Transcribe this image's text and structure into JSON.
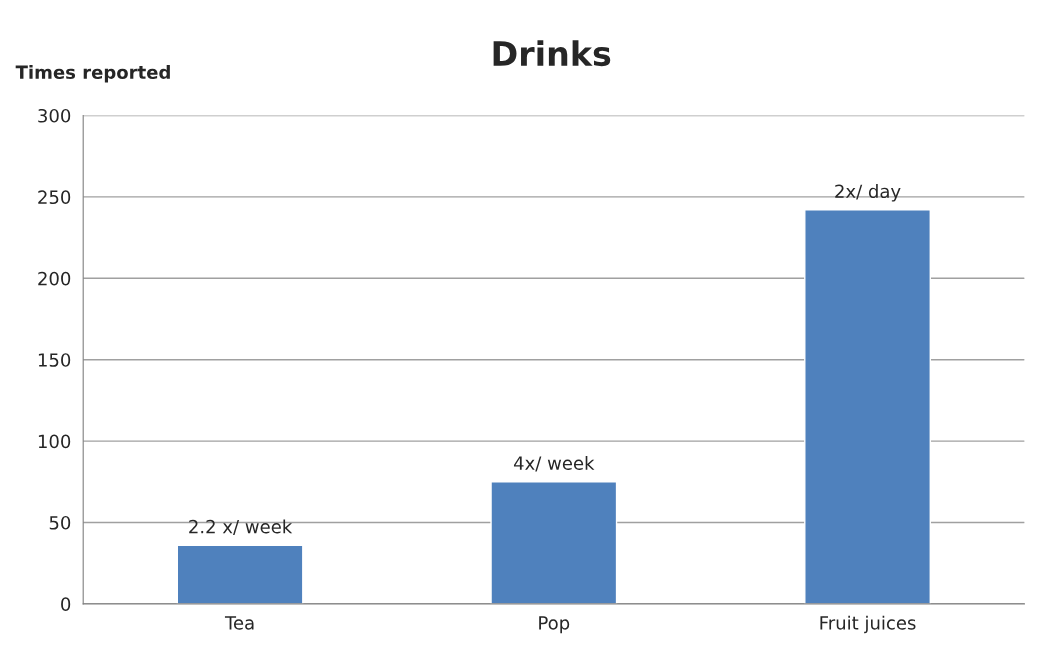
{
  "chart_data": {
    "type": "bar",
    "title": "Drinks",
    "ylabel": "Times reported",
    "categories": [
      "Tea",
      "Pop",
      "Fruit juices"
    ],
    "values": [
      36,
      75,
      242
    ],
    "annotations": [
      {
        "text": "2.2 x/ week",
        "x": "Tea",
        "y": 36
      },
      {
        "text": "4x/ week",
        "x": "Pop",
        "y": 75
      },
      {
        "text": "2x/ day",
        "x": "Fruit juices",
        "y": 242
      }
    ],
    "color": "#4f81bd",
    "ylim": [
      0,
      300
    ],
    "yticks": [
      0,
      50,
      100,
      150,
      200,
      250,
      300
    ],
    "grid": "y"
  }
}
